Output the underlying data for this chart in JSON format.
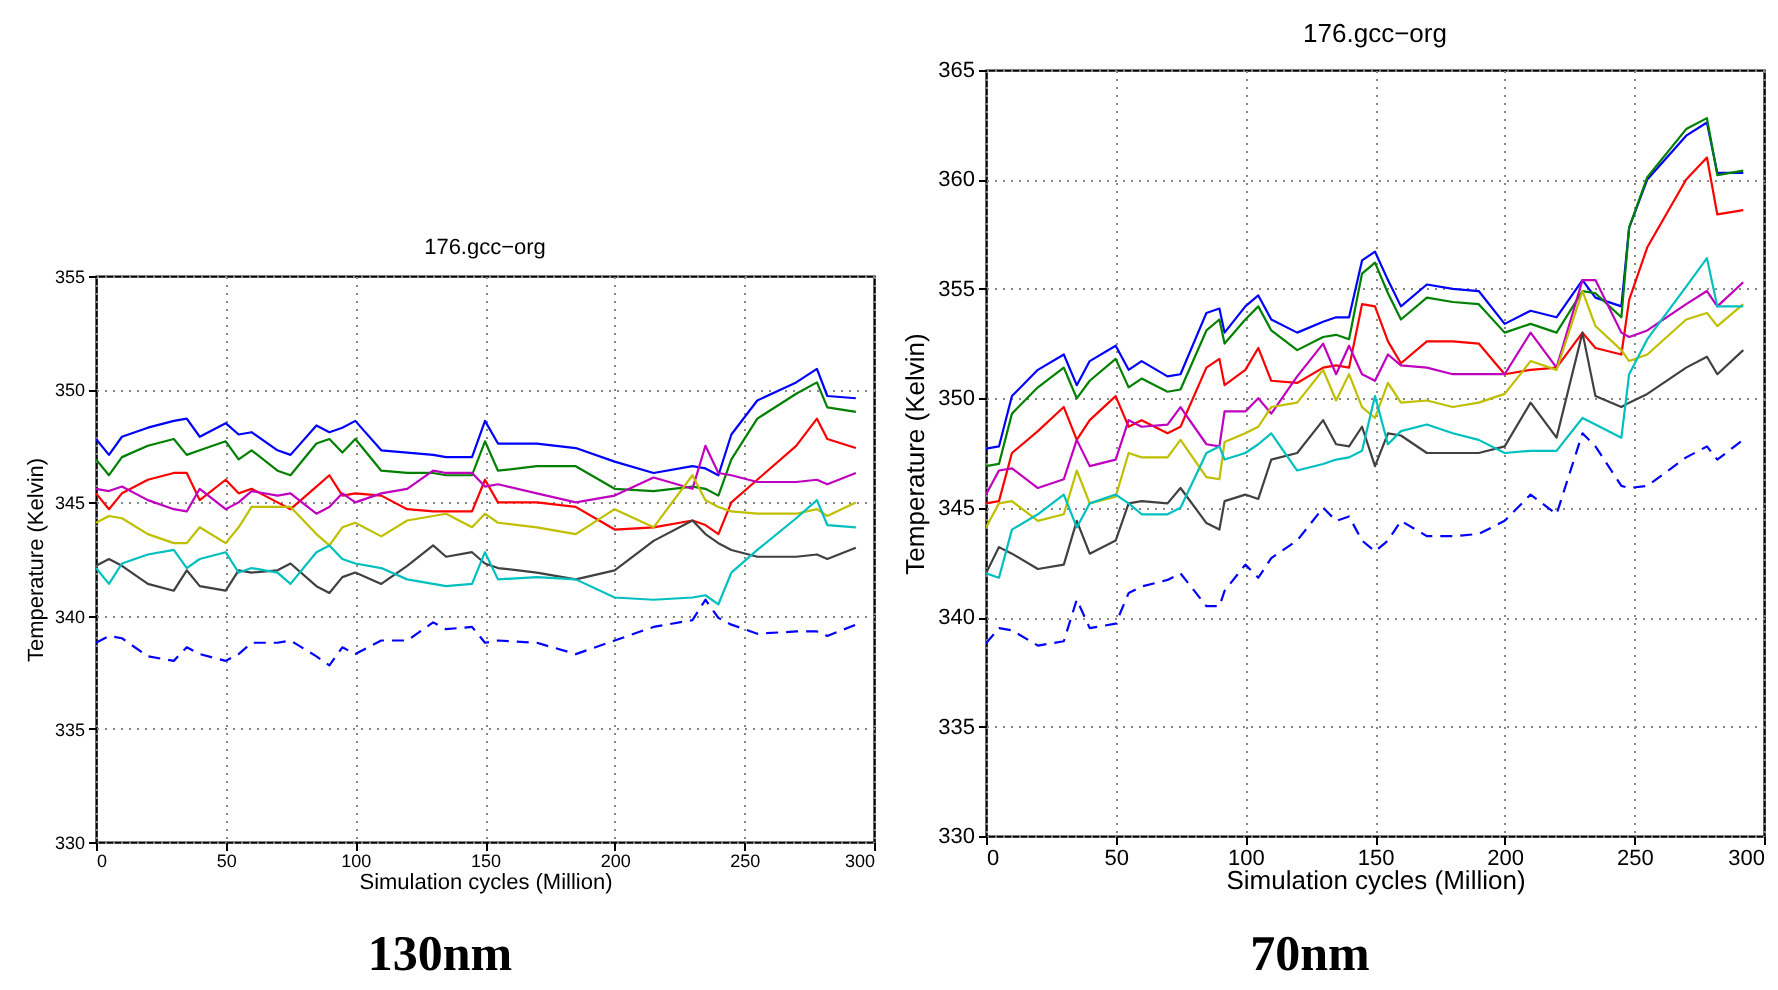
{
  "chart_data": [
    {
      "type": "line",
      "title": "176.gcc−org",
      "xlabel": "Simulation cycles (Million)",
      "ylabel": "Temperature (Kelvin)",
      "annotations": [
        "130nm"
      ],
      "grid": true,
      "xlim": [
        0,
        300
      ],
      "xticks": [
        0,
        50,
        100,
        150,
        200,
        250,
        300
      ],
      "ylim": [
        330,
        355
      ],
      "yticks": [
        330,
        335,
        340,
        345,
        350,
        355
      ],
      "x": [
        0,
        5,
        10,
        20,
        30,
        35,
        40,
        50,
        55,
        60,
        70,
        75,
        85,
        90,
        95,
        100,
        110,
        120,
        130,
        135,
        145,
        150,
        155,
        170,
        185,
        200,
        215,
        230,
        235,
        240,
        245,
        255,
        270,
        278,
        282,
        293
      ],
      "series": [
        {
          "color": "#0000ff",
          "values": [
            347.8,
            347.1,
            347.9,
            348.3,
            348.6,
            348.7,
            347.9,
            348.5,
            348.0,
            348.1,
            347.3,
            347.1,
            348.4,
            348.1,
            348.3,
            348.6,
            347.3,
            347.2,
            347.1,
            347.0,
            347.0,
            348.6,
            347.6,
            347.6,
            347.4,
            346.8,
            346.3,
            346.6,
            346.5,
            346.2,
            348.0,
            349.5,
            350.3,
            350.9,
            349.7,
            349.6
          ]
        },
        {
          "color": "#008000",
          "values": [
            346.9,
            346.2,
            347.0,
            347.5,
            347.8,
            347.1,
            347.3,
            347.7,
            346.9,
            347.3,
            346.4,
            346.2,
            347.6,
            347.8,
            347.2,
            347.8,
            346.4,
            346.3,
            346.3,
            346.2,
            346.2,
            347.7,
            346.4,
            346.6,
            346.6,
            345.6,
            345.5,
            345.7,
            345.6,
            345.3,
            346.9,
            348.7,
            349.8,
            350.3,
            349.2,
            349.0
          ]
        },
        {
          "color": "#ff0000",
          "values": [
            345.4,
            344.7,
            345.4,
            346.0,
            346.3,
            346.3,
            345.1,
            346.0,
            345.4,
            345.6,
            345.0,
            344.7,
            345.7,
            346.2,
            345.3,
            345.4,
            345.3,
            344.7,
            344.6,
            344.6,
            344.6,
            346.0,
            345.0,
            345.0,
            344.8,
            343.8,
            343.9,
            344.2,
            344.0,
            343.6,
            345.0,
            346.0,
            347.5,
            348.7,
            347.8,
            347.4
          ]
        },
        {
          "color": "#bf00bf",
          "values": [
            345.6,
            345.5,
            345.7,
            345.1,
            344.7,
            344.6,
            345.6,
            344.7,
            345.0,
            345.5,
            345.3,
            345.4,
            344.5,
            344.8,
            345.4,
            345.0,
            345.4,
            345.6,
            346.4,
            346.3,
            346.3,
            345.7,
            345.8,
            345.4,
            345.0,
            345.3,
            346.1,
            345.6,
            347.5,
            346.3,
            346.2,
            345.9,
            345.9,
            346.0,
            345.8,
            346.3
          ]
        },
        {
          "color": "#bfbf00",
          "values": [
            344.1,
            344.4,
            344.3,
            343.6,
            343.2,
            343.2,
            343.9,
            343.2,
            343.9,
            344.8,
            344.8,
            344.8,
            343.6,
            343.1,
            343.9,
            344.1,
            343.5,
            344.2,
            344.4,
            344.5,
            343.9,
            344.5,
            344.1,
            343.9,
            343.6,
            344.7,
            343.9,
            346.2,
            345.1,
            344.8,
            344.6,
            344.5,
            344.5,
            344.7,
            344.4,
            345.0
          ]
        },
        {
          "color": "#404040",
          "values": [
            342.2,
            342.5,
            342.2,
            341.4,
            341.1,
            342.0,
            341.3,
            341.1,
            342.0,
            341.9,
            342.0,
            342.3,
            341.3,
            341.0,
            341.7,
            341.9,
            341.4,
            342.2,
            343.1,
            342.6,
            342.8,
            342.3,
            342.1,
            341.9,
            341.6,
            342.0,
            343.3,
            344.2,
            343.6,
            343.2,
            342.9,
            342.6,
            342.6,
            342.7,
            342.5,
            343.0
          ]
        },
        {
          "color": "#00bfbf",
          "values": [
            342.1,
            341.4,
            342.3,
            342.7,
            342.9,
            342.1,
            342.5,
            342.8,
            341.9,
            342.1,
            341.9,
            341.4,
            342.8,
            343.1,
            342.5,
            342.3,
            342.1,
            341.6,
            341.4,
            341.3,
            341.4,
            342.8,
            341.6,
            341.7,
            341.6,
            340.8,
            340.7,
            340.8,
            340.9,
            340.5,
            341.9,
            342.9,
            344.3,
            345.1,
            344.0,
            343.9
          ]
        },
        {
          "color": "#0000ff",
          "line_style": "dashed",
          "values": [
            338.8,
            339.1,
            339.0,
            338.2,
            338.0,
            338.6,
            338.3,
            338.0,
            338.3,
            338.8,
            338.8,
            338.9,
            338.2,
            337.8,
            338.6,
            338.3,
            338.9,
            338.9,
            339.7,
            339.4,
            339.5,
            338.8,
            338.9,
            338.8,
            338.3,
            338.9,
            339.5,
            339.8,
            340.7,
            339.9,
            339.6,
            339.2,
            339.3,
            339.3,
            339.1,
            339.6
          ]
        }
      ]
    },
    {
      "type": "line",
      "title": "176.gcc−org",
      "xlabel": "Simulation cycles (Million)",
      "ylabel": "Temperature (Kelvin)",
      "annotations": [
        "70nm"
      ],
      "grid": true,
      "xlim": [
        0,
        300
      ],
      "xticks": [
        0,
        50,
        100,
        150,
        200,
        250,
        300
      ],
      "ylim": [
        330,
        365
      ],
      "yticks": [
        330,
        335,
        340,
        345,
        350,
        355,
        360,
        365
      ],
      "x": [
        0,
        5,
        10,
        20,
        30,
        35,
        40,
        50,
        55,
        60,
        70,
        75,
        85,
        90,
        92,
        100,
        105,
        110,
        120,
        130,
        135,
        140,
        145,
        150,
        155,
        160,
        170,
        180,
        190,
        200,
        210,
        220,
        230,
        235,
        245,
        248,
        255,
        270,
        278,
        282,
        292
      ],
      "series": [
        {
          "color": "#0000ff",
          "values": [
            347.7,
            347.8,
            350.1,
            351.3,
            352.0,
            350.6,
            351.7,
            352.4,
            351.3,
            351.7,
            351.0,
            351.1,
            353.9,
            354.1,
            353.0,
            354.2,
            354.7,
            353.6,
            353.0,
            353.5,
            353.7,
            353.7,
            356.3,
            356.7,
            355.4,
            354.2,
            355.2,
            355.0,
            354.9,
            353.4,
            354.0,
            353.7,
            355.4,
            354.6,
            354.2,
            357.8,
            360.0,
            362.0,
            362.6,
            360.3,
            360.3
          ]
        },
        {
          "color": "#008000",
          "values": [
            346.9,
            347.0,
            349.3,
            350.5,
            351.4,
            350.0,
            350.8,
            351.8,
            350.5,
            350.9,
            350.3,
            350.4,
            353.1,
            353.6,
            352.5,
            353.6,
            354.2,
            353.1,
            352.2,
            352.8,
            352.9,
            352.7,
            355.7,
            356.2,
            354.8,
            353.6,
            354.6,
            354.4,
            354.3,
            353.0,
            353.4,
            353.0,
            354.9,
            354.8,
            353.7,
            357.8,
            360.1,
            362.3,
            362.8,
            360.2,
            360.4
          ]
        },
        {
          "color": "#ff0000",
          "values": [
            345.2,
            345.3,
            347.5,
            348.5,
            349.6,
            348.1,
            349.0,
            350.1,
            348.7,
            349.0,
            348.4,
            348.7,
            351.4,
            351.8,
            350.6,
            351.3,
            352.3,
            350.8,
            350.7,
            351.4,
            351.5,
            351.4,
            354.3,
            354.2,
            352.6,
            351.6,
            352.6,
            352.6,
            352.5,
            351.1,
            351.3,
            351.4,
            353.0,
            352.3,
            352.0,
            354.5,
            356.9,
            360.0,
            361.0,
            358.4,
            358.6
          ]
        },
        {
          "color": "#bf00bf",
          "values": [
            345.6,
            346.7,
            346.8,
            345.9,
            346.3,
            348.1,
            346.9,
            347.2,
            349.0,
            348.7,
            348.8,
            349.6,
            347.9,
            347.8,
            349.4,
            349.4,
            350.0,
            349.3,
            351.0,
            352.5,
            351.1,
            352.4,
            351.1,
            350.8,
            352.0,
            351.5,
            351.4,
            351.1,
            351.1,
            351.1,
            353.0,
            351.4,
            355.4,
            355.4,
            353.0,
            352.8,
            353.1,
            354.3,
            354.9,
            354.2,
            355.3
          ]
        },
        {
          "color": "#bfbf00",
          "values": [
            344.1,
            345.2,
            345.3,
            344.4,
            344.7,
            346.7,
            345.2,
            345.5,
            347.5,
            347.3,
            347.3,
            348.1,
            346.4,
            346.3,
            348.0,
            348.4,
            348.7,
            349.6,
            349.8,
            351.3,
            349.9,
            351.1,
            349.6,
            349.1,
            350.7,
            349.8,
            349.9,
            349.6,
            349.8,
            350.2,
            351.7,
            351.3,
            354.9,
            353.3,
            352.2,
            351.7,
            352.0,
            353.6,
            353.9,
            353.3,
            354.3
          ]
        },
        {
          "color": "#404040",
          "values": [
            342.0,
            343.2,
            342.9,
            342.2,
            342.4,
            344.4,
            342.9,
            343.5,
            345.2,
            345.3,
            345.2,
            345.9,
            344.3,
            344.0,
            345.3,
            345.6,
            345.4,
            347.2,
            347.5,
            349.0,
            347.9,
            347.8,
            348.7,
            346.9,
            348.4,
            348.3,
            347.5,
            347.5,
            347.5,
            347.8,
            349.8,
            348.2,
            353.0,
            350.1,
            349.6,
            349.8,
            350.2,
            351.4,
            351.9,
            351.1,
            352.2
          ]
        },
        {
          "color": "#00bfbf",
          "values": [
            342.0,
            341.8,
            344.0,
            344.7,
            345.6,
            344.1,
            345.2,
            345.6,
            345.2,
            344.7,
            344.7,
            345.0,
            347.5,
            347.8,
            347.2,
            347.5,
            347.9,
            348.4,
            346.7,
            347.0,
            347.2,
            347.3,
            347.6,
            350.1,
            347.9,
            348.5,
            348.8,
            348.4,
            348.1,
            347.5,
            347.6,
            347.6,
            349.1,
            348.8,
            348.2,
            351.1,
            352.7,
            355.1,
            356.4,
            354.2,
            354.2
          ]
        },
        {
          "color": "#0000ff",
          "line_style": "dashed",
          "values": [
            338.8,
            339.5,
            339.4,
            338.7,
            338.9,
            340.8,
            339.5,
            339.7,
            341.1,
            341.4,
            341.7,
            342.0,
            340.5,
            340.5,
            341.2,
            342.4,
            341.8,
            342.7,
            343.5,
            345.0,
            344.4,
            344.6,
            343.5,
            343.0,
            343.5,
            344.4,
            343.7,
            343.7,
            343.8,
            344.4,
            345.6,
            344.7,
            348.4,
            347.8,
            346.0,
            345.9,
            346.0,
            347.3,
            347.8,
            347.2,
            348.1
          ]
        }
      ]
    }
  ]
}
